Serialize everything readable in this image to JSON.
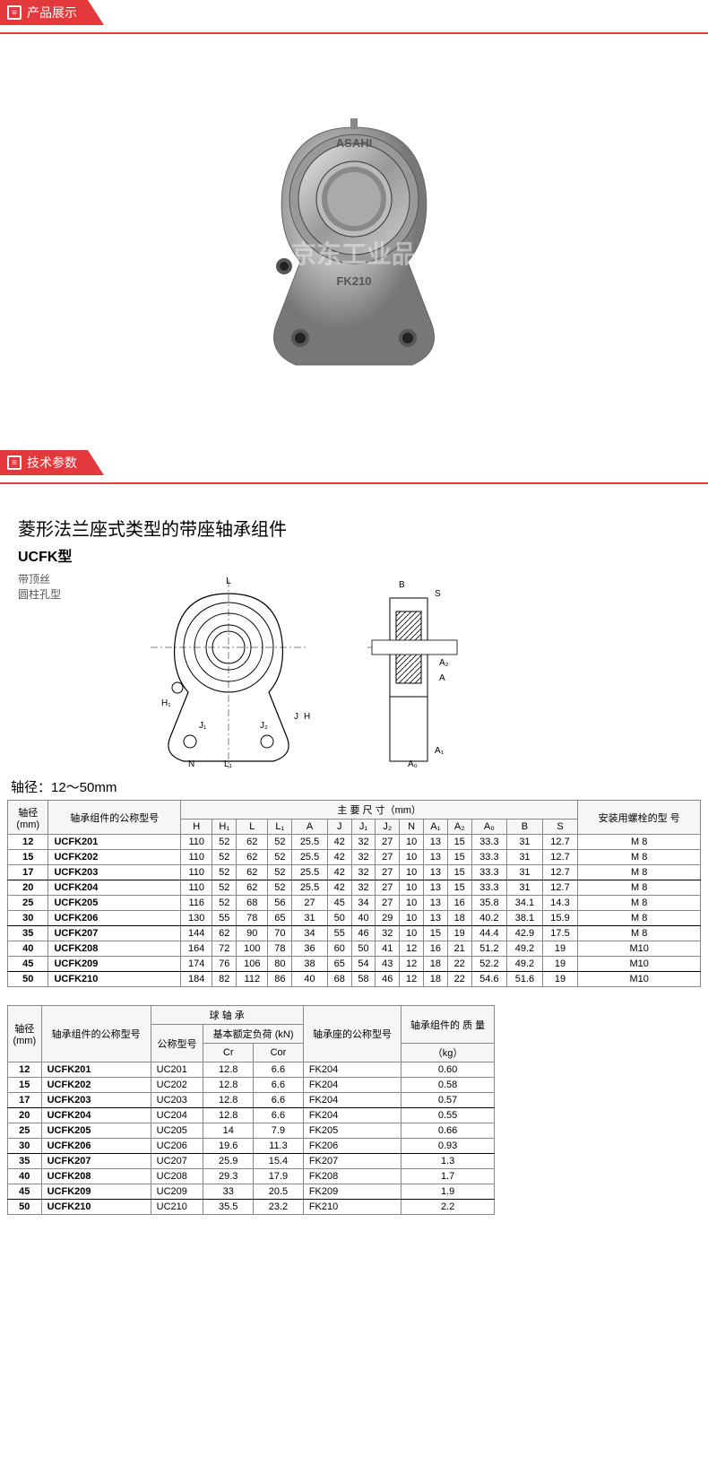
{
  "section_product_display": "产品展示",
  "section_tech_params": "技术参数",
  "watermark_text": "京东工业品",
  "product_brand": "ASAHI",
  "product_model_label": "FK210",
  "tech_title": "菱形法兰座式类型的带座轴承组件",
  "tech_model": "UCFK型",
  "tech_note1": "带顶丝",
  "tech_note2": "圆柱孔型",
  "shaft_range": "轴径：12～50mm",
  "table1": {
    "h_shaft": "轴径",
    "h_shaft_unit": "(mm)",
    "h_model": "轴承组件的公称型号",
    "h_dims": "主 要 尺 寸（mm）",
    "h_bolt": "安装用螺栓的型 号",
    "cols": [
      "H",
      "H₁",
      "L",
      "L₁",
      "A",
      "J",
      "J₁",
      "J₂",
      "N",
      "A₁",
      "A₂",
      "A₀",
      "B",
      "S"
    ],
    "rows": [
      {
        "d": "12",
        "m": "UCFK201",
        "v": [
          "110",
          "52",
          "62",
          "52",
          "25.5",
          "42",
          "32",
          "27",
          "10",
          "13",
          "15",
          "33.3",
          "31",
          "12.7"
        ],
        "b": "M 8"
      },
      {
        "d": "15",
        "m": "UCFK202",
        "v": [
          "110",
          "52",
          "62",
          "52",
          "25.5",
          "42",
          "32",
          "27",
          "10",
          "13",
          "15",
          "33.3",
          "31",
          "12.7"
        ],
        "b": "M 8"
      },
      {
        "d": "17",
        "m": "UCFK203",
        "v": [
          "110",
          "52",
          "62",
          "52",
          "25.5",
          "42",
          "32",
          "27",
          "10",
          "13",
          "15",
          "33.3",
          "31",
          "12.7"
        ],
        "b": "M 8",
        "end": true
      },
      {
        "d": "20",
        "m": "UCFK204",
        "v": [
          "110",
          "52",
          "62",
          "52",
          "25.5",
          "42",
          "32",
          "27",
          "10",
          "13",
          "15",
          "33.3",
          "31",
          "12.7"
        ],
        "b": "M 8"
      },
      {
        "d": "25",
        "m": "UCFK205",
        "v": [
          "116",
          "52",
          "68",
          "56",
          "27",
          "45",
          "34",
          "27",
          "10",
          "13",
          "16",
          "35.8",
          "34.1",
          "14.3"
        ],
        "b": "M 8"
      },
      {
        "d": "30",
        "m": "UCFK206",
        "v": [
          "130",
          "55",
          "78",
          "65",
          "31",
          "50",
          "40",
          "29",
          "10",
          "13",
          "18",
          "40.2",
          "38.1",
          "15.9"
        ],
        "b": "M 8",
        "end": true
      },
      {
        "d": "35",
        "m": "UCFK207",
        "v": [
          "144",
          "62",
          "90",
          "70",
          "34",
          "55",
          "46",
          "32",
          "10",
          "15",
          "19",
          "44.4",
          "42.9",
          "17.5"
        ],
        "b": "M 8"
      },
      {
        "d": "40",
        "m": "UCFK208",
        "v": [
          "164",
          "72",
          "100",
          "78",
          "36",
          "60",
          "50",
          "41",
          "12",
          "16",
          "21",
          "51.2",
          "49.2",
          "19"
        ],
        "b": "M10"
      },
      {
        "d": "45",
        "m": "UCFK209",
        "v": [
          "174",
          "76",
          "106",
          "80",
          "38",
          "65",
          "54",
          "43",
          "12",
          "18",
          "22",
          "52.2",
          "49.2",
          "19"
        ],
        "b": "M10",
        "end": true
      },
      {
        "d": "50",
        "m": "UCFK210",
        "v": [
          "184",
          "82",
          "112",
          "86",
          "40",
          "68",
          "58",
          "46",
          "12",
          "18",
          "22",
          "54.6",
          "51.6",
          "19"
        ],
        "b": "M10"
      }
    ]
  },
  "table2": {
    "h_shaft": "轴径",
    "h_shaft_unit": "(mm)",
    "h_model": "轴承组件的公称型号",
    "h_ball": "球 轴 承",
    "h_ball_model": "公称型号",
    "h_load": "基本额定负荷 (kN)",
    "h_cr": "Cr",
    "h_cor": "Cor",
    "h_seat": "轴承座的公称型号",
    "h_mass": "轴承组件的 质 量",
    "h_mass_unit": "（kg）",
    "rows": [
      {
        "d": "12",
        "m": "UCFK201",
        "bm": "UC201",
        "cr": "12.8",
        "cor": "6.6",
        "sm": "FK204",
        "kg": "0.60"
      },
      {
        "d": "15",
        "m": "UCFK202",
        "bm": "UC202",
        "cr": "12.8",
        "cor": "6.6",
        "sm": "FK204",
        "kg": "0.58"
      },
      {
        "d": "17",
        "m": "UCFK203",
        "bm": "UC203",
        "cr": "12.8",
        "cor": "6.6",
        "sm": "FK204",
        "kg": "0.57",
        "end": true
      },
      {
        "d": "20",
        "m": "UCFK204",
        "bm": "UC204",
        "cr": "12.8",
        "cor": "6.6",
        "sm": "FK204",
        "kg": "0.55"
      },
      {
        "d": "25",
        "m": "UCFK205",
        "bm": "UC205",
        "cr": "14",
        "cor": "7.9",
        "sm": "FK205",
        "kg": "0.66"
      },
      {
        "d": "30",
        "m": "UCFK206",
        "bm": "UC206",
        "cr": "19.6",
        "cor": "11.3",
        "sm": "FK206",
        "kg": "0.93",
        "end": true
      },
      {
        "d": "35",
        "m": "UCFK207",
        "bm": "UC207",
        "cr": "25.9",
        "cor": "15.4",
        "sm": "FK207",
        "kg": "1.3"
      },
      {
        "d": "40",
        "m": "UCFK208",
        "bm": "UC208",
        "cr": "29.3",
        "cor": "17.9",
        "sm": "FK208",
        "kg": "1.7"
      },
      {
        "d": "45",
        "m": "UCFK209",
        "bm": "UC209",
        "cr": "33",
        "cor": "20.5",
        "sm": "FK209",
        "kg": "1.9",
        "end": true
      },
      {
        "d": "50",
        "m": "UCFK210",
        "bm": "UC210",
        "cr": "35.5",
        "cor": "23.2",
        "sm": "FK210",
        "kg": "2.2"
      }
    ]
  },
  "colors": {
    "accent": "#e4393c",
    "border": "#888888",
    "header_bg": "#f6f6f6"
  }
}
